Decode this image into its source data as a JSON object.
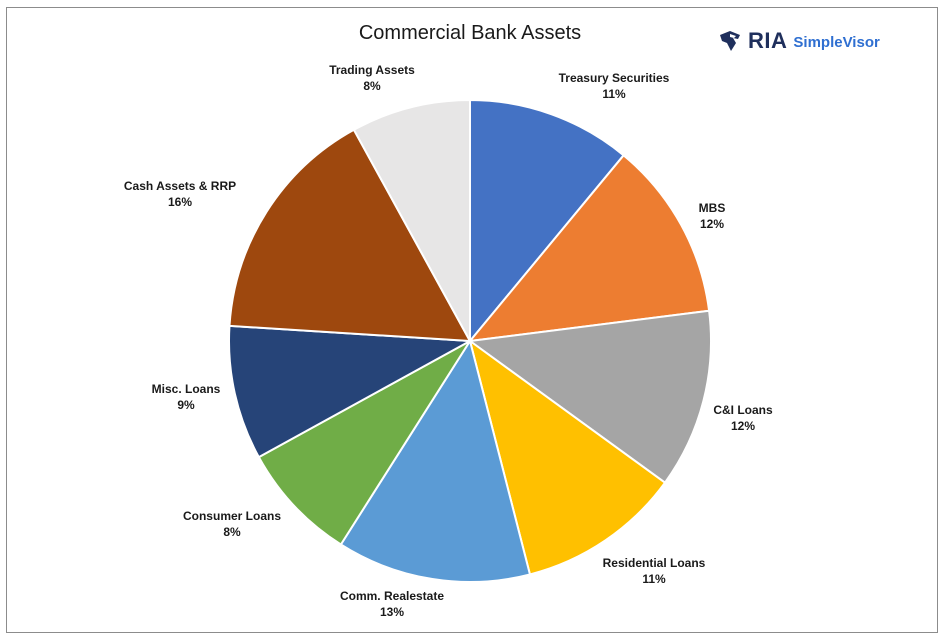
{
  "chart_data": {
    "type": "pie",
    "title": "Commercial Bank Assets",
    "slices": [
      {
        "label": "Treasury Securities",
        "value": 11,
        "display": "11%",
        "color": "#4472C4"
      },
      {
        "label": "MBS",
        "value": 12,
        "display": "12%",
        "color": "#ED7D31"
      },
      {
        "label": "C&I Loans",
        "value": 12,
        "display": "12%",
        "color": "#A5A5A5"
      },
      {
        "label": "Residential Loans",
        "value": 11,
        "display": "11%",
        "color": "#FFC000"
      },
      {
        "label": "Comm. Realestate",
        "value": 13,
        "display": "13%",
        "color": "#5B9BD5"
      },
      {
        "label": "Consumer Loans",
        "value": 8,
        "display": "8%",
        "color": "#70AD47"
      },
      {
        "label": "Misc. Loans",
        "value": 9,
        "display": "9%",
        "color": "#264478"
      },
      {
        "label": "Cash Assets & RRP",
        "value": 16,
        "display": "16%",
        "color": "#9E480E"
      },
      {
        "label": "Trading Assets",
        "value": 8,
        "display": "8%",
        "color": "#E7E6E6"
      }
    ],
    "legend": "none",
    "start_angle": "12 o'clock, clockwise"
  },
  "branding": {
    "logo_primary": "RIA",
    "logo_secondary": "SimpleVisor",
    "logo_icon": "eagle-head-icon",
    "logo_color": "#1F2F5C",
    "logo_accent": "#2F6FD1"
  }
}
